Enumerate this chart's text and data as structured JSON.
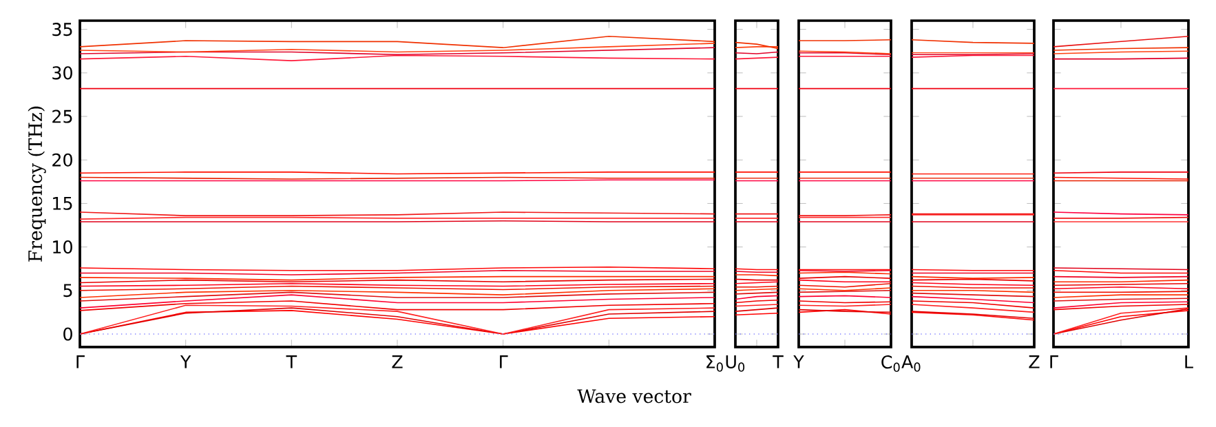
{
  "chart_data": [
    {
      "type": "line",
      "ylabel": "Frequency (THz)",
      "xlabel": "Wave vector",
      "colors": [
        "#ff0000",
        "#e00000",
        "#ff2020",
        "#f00000",
        "#ff0030",
        "#e01010",
        "#ff3000",
        "#f01000",
        "#ff0018",
        "#e80000",
        "#ff2800",
        "#f00020",
        "#ff0808",
        "#e00018",
        "#ff3030",
        "#f01818",
        "#ff0040",
        "#e82000",
        "#ff1000",
        "#f00010",
        "#ff1838",
        "#e00028",
        "#ff4010",
        "#f03000"
      ],
      "categories": [
        "Γ",
        "Y",
        "T",
        "Z",
        "Γ",
        null,
        "Σ$_{0}$"
      ],
      "ylim": [
        -1.5,
        36
      ],
      "yticks": [
        0,
        5,
        10,
        15,
        20,
        25,
        30,
        35
      ],
      "ref_lines": [
        {
          "axis": "y",
          "value": 0,
          "color": "#8080ff",
          "line_style": "dotted"
        }
      ],
      "series": [
        {
          "values": [
            0,
            2.5,
            2.7,
            1.7,
            0,
            1.8,
            2.0
          ]
        },
        {
          "values": [
            0,
            2.4,
            3.0,
            2.0,
            0,
            2.3,
            2.6
          ]
        },
        {
          "values": [
            0,
            3.3,
            3.2,
            2.6,
            0,
            2.8,
            3.0
          ]
        },
        {
          "values": [
            2.7,
            3.5,
            3.8,
            2.8,
            2.8,
            3.3,
            3.5
          ]
        },
        {
          "values": [
            3.0,
            3.8,
            4.5,
            3.6,
            3.6,
            4.0,
            4.2
          ]
        },
        {
          "values": [
            3.8,
            4.3,
            4.8,
            4.2,
            4.2,
            4.6,
            4.8
          ]
        },
        {
          "values": [
            4.2,
            4.8,
            5.0,
            4.8,
            4.5,
            5.0,
            5.2
          ]
        },
        {
          "values": [
            5.0,
            5.2,
            5.5,
            5.3,
            5.1,
            5.4,
            5.5
          ]
        },
        {
          "values": [
            5.5,
            5.6,
            5.8,
            5.6,
            5.5,
            5.7,
            5.8
          ]
        },
        {
          "values": [
            5.9,
            6.2,
            6.0,
            6.2,
            6.0,
            6.2,
            6.3
          ]
        },
        {
          "values": [
            6.5,
            6.4,
            6.2,
            6.5,
            6.6,
            6.6,
            6.6
          ]
        },
        {
          "values": [
            7.0,
            7.0,
            6.8,
            7.0,
            7.3,
            7.2,
            7.2
          ]
        },
        {
          "values": [
            7.6,
            7.4,
            7.3,
            7.3,
            7.6,
            7.7,
            7.5
          ]
        },
        {
          "values": [
            12.9,
            12.9,
            12.9,
            12.9,
            13.0,
            12.9,
            12.9
          ]
        },
        {
          "values": [
            13.2,
            13.4,
            13.4,
            13.3,
            13.3,
            13.3,
            13.3
          ]
        },
        {
          "values": [
            14.0,
            13.6,
            13.6,
            13.7,
            14.0,
            13.9,
            13.8
          ]
        },
        {
          "values": [
            17.6,
            17.6,
            17.6,
            17.6,
            17.6,
            17.7,
            17.7
          ]
        },
        {
          "values": [
            18.0,
            17.9,
            17.8,
            17.9,
            18.0,
            17.9,
            17.9
          ]
        },
        {
          "values": [
            18.5,
            18.6,
            18.6,
            18.4,
            18.5,
            18.6,
            18.6
          ]
        },
        {
          "values": [
            28.2,
            28.2,
            28.2,
            28.2,
            28.2,
            28.2,
            28.2
          ]
        },
        {
          "values": [
            31.6,
            31.9,
            31.4,
            32.0,
            31.9,
            31.7,
            31.6
          ]
        },
        {
          "values": [
            32.2,
            32.4,
            32.4,
            32.1,
            32.3,
            32.6,
            32.9
          ]
        },
        {
          "values": [
            32.6,
            32.4,
            32.7,
            32.4,
            32.6,
            33.0,
            33.4
          ]
        },
        {
          "values": [
            33.0,
            33.7,
            33.6,
            33.6,
            32.9,
            34.2,
            33.6
          ]
        }
      ]
    },
    {
      "type": "line",
      "tick_labels": "x",
      "colors": [
        "#ff0000",
        "#e00000",
        "#ff2020",
        "#f00000",
        "#ff0030",
        "#e01010",
        "#ff3000",
        "#f01000",
        "#ff0018",
        "#e80000",
        "#ff2800",
        "#f00020",
        "#ff0808",
        "#e00018",
        "#ff3030",
        "#f01818",
        "#ff0040",
        "#e82000",
        "#ff1000",
        "#f00010",
        "#ff1838",
        "#e00028",
        "#ff4010",
        "#f03000"
      ],
      "categories": [
        "U$_{0}$",
        null,
        "T"
      ],
      "ylim": [
        -1.5,
        36
      ],
      "yticks": [
        0,
        5,
        10,
        15,
        20,
        25,
        30,
        35
      ],
      "ref_lines": [
        {
          "axis": "y",
          "value": 0,
          "color": "#8080ff",
          "line_style": "dotted"
        }
      ],
      "series": [
        {
          "values": [
            2.2,
            2.3,
            2.4
          ]
        },
        {
          "values": [
            2.6,
            2.8,
            3.0
          ]
        },
        {
          "values": [
            3.2,
            3.3,
            3.4
          ]
        },
        {
          "values": [
            3.6,
            3.8,
            3.9
          ]
        },
        {
          "values": [
            4.0,
            4.3,
            4.4
          ]
        },
        {
          "values": [
            4.6,
            4.7,
            4.8
          ]
        },
        {
          "values": [
            5.0,
            5.1,
            5.2
          ]
        },
        {
          "values": [
            5.4,
            5.4,
            5.5
          ]
        },
        {
          "values": [
            5.8,
            5.9,
            6.0
          ]
        },
        {
          "values": [
            6.3,
            6.2,
            6.2
          ]
        },
        {
          "values": [
            6.8,
            6.8,
            6.7
          ]
        },
        {
          "values": [
            7.2,
            7.1,
            7.1
          ]
        },
        {
          "values": [
            7.5,
            7.4,
            7.4
          ]
        },
        {
          "values": [
            12.9,
            12.9,
            12.9
          ]
        },
        {
          "values": [
            13.3,
            13.3,
            13.3
          ]
        },
        {
          "values": [
            13.8,
            13.8,
            13.8
          ]
        },
        {
          "values": [
            17.6,
            17.6,
            17.6
          ]
        },
        {
          "values": [
            17.9,
            17.9,
            17.9
          ]
        },
        {
          "values": [
            18.6,
            18.6,
            18.6
          ]
        },
        {
          "values": [
            28.2,
            28.2,
            28.2
          ]
        },
        {
          "values": [
            31.6,
            31.7,
            31.8
          ]
        },
        {
          "values": [
            32.3,
            32.2,
            32.4
          ]
        },
        {
          "values": [
            32.9,
            33.0,
            33.0
          ]
        },
        {
          "values": [
            33.5,
            33.3,
            32.8
          ]
        }
      ]
    },
    {
      "type": "line",
      "tick_labels": "x",
      "colors": [
        "#ff0000",
        "#e00000",
        "#ff2020",
        "#f00000",
        "#ff0030",
        "#e01010",
        "#ff3000",
        "#f01000",
        "#ff0018",
        "#e80000",
        "#ff2800",
        "#f00020",
        "#ff0808",
        "#e00018",
        "#ff3030",
        "#f01818",
        "#ff0040",
        "#e82000",
        "#ff1000",
        "#f00010",
        "#ff1838",
        "#e00028",
        "#ff4010",
        "#f03000"
      ],
      "categories": [
        "Y",
        null,
        "C$_{0}$"
      ],
      "ylim": [
        -1.5,
        36
      ],
      "yticks": [
        0,
        5,
        10,
        15,
        20,
        25,
        30,
        35
      ],
      "ref_lines": [
        {
          "axis": "y",
          "value": 0,
          "color": "#8080ff",
          "line_style": "dotted"
        }
      ],
      "series": [
        {
          "values": [
            2.5,
            2.8,
            2.3
          ]
        },
        {
          "values": [
            2.8,
            2.6,
            2.5
          ]
        },
        {
          "values": [
            3.3,
            3.2,
            3.4
          ]
        },
        {
          "values": [
            3.8,
            3.6,
            3.7
          ]
        },
        {
          "values": [
            4.3,
            4.4,
            4.2
          ]
        },
        {
          "values": [
            4.8,
            4.9,
            5.0
          ]
        },
        {
          "values": [
            5.2,
            5.0,
            5.3
          ]
        },
        {
          "values": [
            5.6,
            5.4,
            5.8
          ]
        },
        {
          "values": [
            6.2,
            6.0,
            6.0
          ]
        },
        {
          "values": [
            6.4,
            6.6,
            6.4
          ]
        },
        {
          "values": [
            7.0,
            7.1,
            6.9
          ]
        },
        {
          "values": [
            7.3,
            7.2,
            7.3
          ]
        },
        {
          "values": [
            7.4,
            7.4,
            7.4
          ]
        },
        {
          "values": [
            12.9,
            12.9,
            12.9
          ]
        },
        {
          "values": [
            13.4,
            13.4,
            13.4
          ]
        },
        {
          "values": [
            13.6,
            13.6,
            13.7
          ]
        },
        {
          "values": [
            17.6,
            17.6,
            17.6
          ]
        },
        {
          "values": [
            17.9,
            17.9,
            17.9
          ]
        },
        {
          "values": [
            18.6,
            18.6,
            18.6
          ]
        },
        {
          "values": [
            28.2,
            28.2,
            28.2
          ]
        },
        {
          "values": [
            31.9,
            31.9,
            31.9
          ]
        },
        {
          "values": [
            32.3,
            32.3,
            32.1
          ]
        },
        {
          "values": [
            32.5,
            32.4,
            32.2
          ]
        },
        {
          "values": [
            33.7,
            33.7,
            33.8
          ]
        }
      ]
    },
    {
      "type": "line",
      "tick_labels": "x",
      "colors": [
        "#ff0000",
        "#e00000",
        "#ff2020",
        "#f00000",
        "#ff0030",
        "#e01010",
        "#ff3000",
        "#f01000",
        "#ff0018",
        "#e80000",
        "#ff2800",
        "#f00020",
        "#ff0808",
        "#e00018",
        "#ff3030",
        "#f01818",
        "#ff0040",
        "#e82000",
        "#ff1000",
        "#f00010",
        "#ff1838",
        "#e00028",
        "#ff4010",
        "#f03000"
      ],
      "categories": [
        "A$_{0}$",
        null,
        "Z"
      ],
      "ylim": [
        -1.5,
        36
      ],
      "yticks": [
        0,
        5,
        10,
        15,
        20,
        25,
        30,
        35
      ],
      "ref_lines": [
        {
          "axis": "y",
          "value": 0,
          "color": "#8080ff",
          "line_style": "dotted"
        }
      ],
      "series": [
        {
          "values": [
            2.5,
            2.2,
            1.6
          ]
        },
        {
          "values": [
            2.6,
            2.3,
            1.8
          ]
        },
        {
          "values": [
            3.4,
            3.0,
            2.5
          ]
        },
        {
          "values": [
            3.8,
            3.6,
            3.0
          ]
        },
        {
          "values": [
            4.3,
            4.0,
            3.6
          ]
        },
        {
          "values": [
            4.7,
            4.5,
            4.3
          ]
        },
        {
          "values": [
            5.0,
            5.0,
            4.8
          ]
        },
        {
          "values": [
            5.5,
            5.3,
            5.3
          ]
        },
        {
          "values": [
            5.9,
            5.7,
            5.6
          ]
        },
        {
          "values": [
            6.2,
            6.3,
            6.1
          ]
        },
        {
          "values": [
            6.6,
            6.4,
            6.5
          ]
        },
        {
          "values": [
            7.0,
            7.0,
            7.0
          ]
        },
        {
          "values": [
            7.4,
            7.3,
            7.3
          ]
        },
        {
          "values": [
            12.9,
            12.9,
            12.9
          ]
        },
        {
          "values": [
            13.7,
            13.7,
            13.7
          ]
        },
        {
          "values": [
            13.8,
            13.8,
            13.8
          ]
        },
        {
          "values": [
            17.6,
            17.6,
            17.6
          ]
        },
        {
          "values": [
            17.9,
            17.9,
            17.9
          ]
        },
        {
          "values": [
            18.4,
            18.4,
            18.4
          ]
        },
        {
          "values": [
            28.2,
            28.2,
            28.2
          ]
        },
        {
          "values": [
            31.8,
            32.0,
            32.0
          ]
        },
        {
          "values": [
            32.1,
            32.1,
            32.2
          ]
        },
        {
          "values": [
            32.3,
            32.3,
            32.3
          ]
        },
        {
          "values": [
            33.8,
            33.5,
            33.4
          ]
        }
      ]
    },
    {
      "type": "line",
      "tick_labels": "x",
      "colors": [
        "#ff0000",
        "#e00000",
        "#ff2020",
        "#f00000",
        "#ff0030",
        "#e01010",
        "#ff3000",
        "#f01000",
        "#ff0018",
        "#e80000",
        "#ff2800",
        "#f00020",
        "#ff0808",
        "#e00018",
        "#ff3030",
        "#f01818",
        "#ff0040",
        "#e82000",
        "#ff1000",
        "#f00010",
        "#ff1838",
        "#e00028",
        "#ff4010",
        "#f03000",
        "#e81010"
      ],
      "categories": [
        "Γ",
        null,
        "L"
      ],
      "ylim": [
        -1.5,
        36
      ],
      "yticks": [
        0,
        5,
        10,
        15,
        20,
        25,
        30,
        35
      ],
      "ref_lines": [
        {
          "axis": "y",
          "value": 0,
          "color": "#8080ff",
          "line_style": "dotted"
        }
      ],
      "series": [
        {
          "values": [
            0,
            2.0,
            2.7
          ]
        },
        {
          "values": [
            0,
            1.6,
            2.9
          ]
        },
        {
          "values": [
            0,
            2.4,
            3.0
          ]
        },
        {
          "values": [
            2.8,
            3.2,
            3.4
          ]
        },
        {
          "values": [
            3.0,
            3.6,
            3.7
          ]
        },
        {
          "values": [
            3.8,
            4.0,
            4.1
          ]
        },
        {
          "values": [
            4.2,
            4.5,
            4.5
          ]
        },
        {
          "values": [
            4.8,
            4.8,
            4.9
          ]
        },
        {
          "values": [
            5.2,
            5.4,
            5.2
          ]
        },
        {
          "values": [
            5.6,
            5.7,
            5.8
          ]
        },
        {
          "values": [
            6.0,
            6.0,
            6.2
          ]
        },
        {
          "values": [
            6.6,
            6.5,
            6.6
          ]
        },
        {
          "values": [
            7.3,
            7.0,
            7.0
          ]
        },
        {
          "values": [
            7.6,
            7.5,
            7.4
          ]
        },
        {
          "values": [
            12.9,
            12.9,
            12.9
          ]
        },
        {
          "values": [
            13.3,
            13.3,
            13.4
          ]
        },
        {
          "values": [
            14.0,
            13.8,
            13.7
          ]
        },
        {
          "values": [
            17.6,
            17.6,
            17.6
          ]
        },
        {
          "values": [
            18.0,
            17.9,
            17.8
          ]
        },
        {
          "values": [
            18.5,
            18.6,
            18.6
          ]
        },
        {
          "values": [
            28.2,
            28.2,
            28.2
          ]
        },
        {
          "values": [
            31.6,
            31.6,
            31.7
          ]
        },
        {
          "values": [
            32.2,
            32.4,
            32.5
          ]
        },
        {
          "values": [
            32.6,
            32.8,
            32.9
          ]
        },
        {
          "values": [
            33.0,
            33.6,
            34.2
          ]
        }
      ]
    }
  ]
}
